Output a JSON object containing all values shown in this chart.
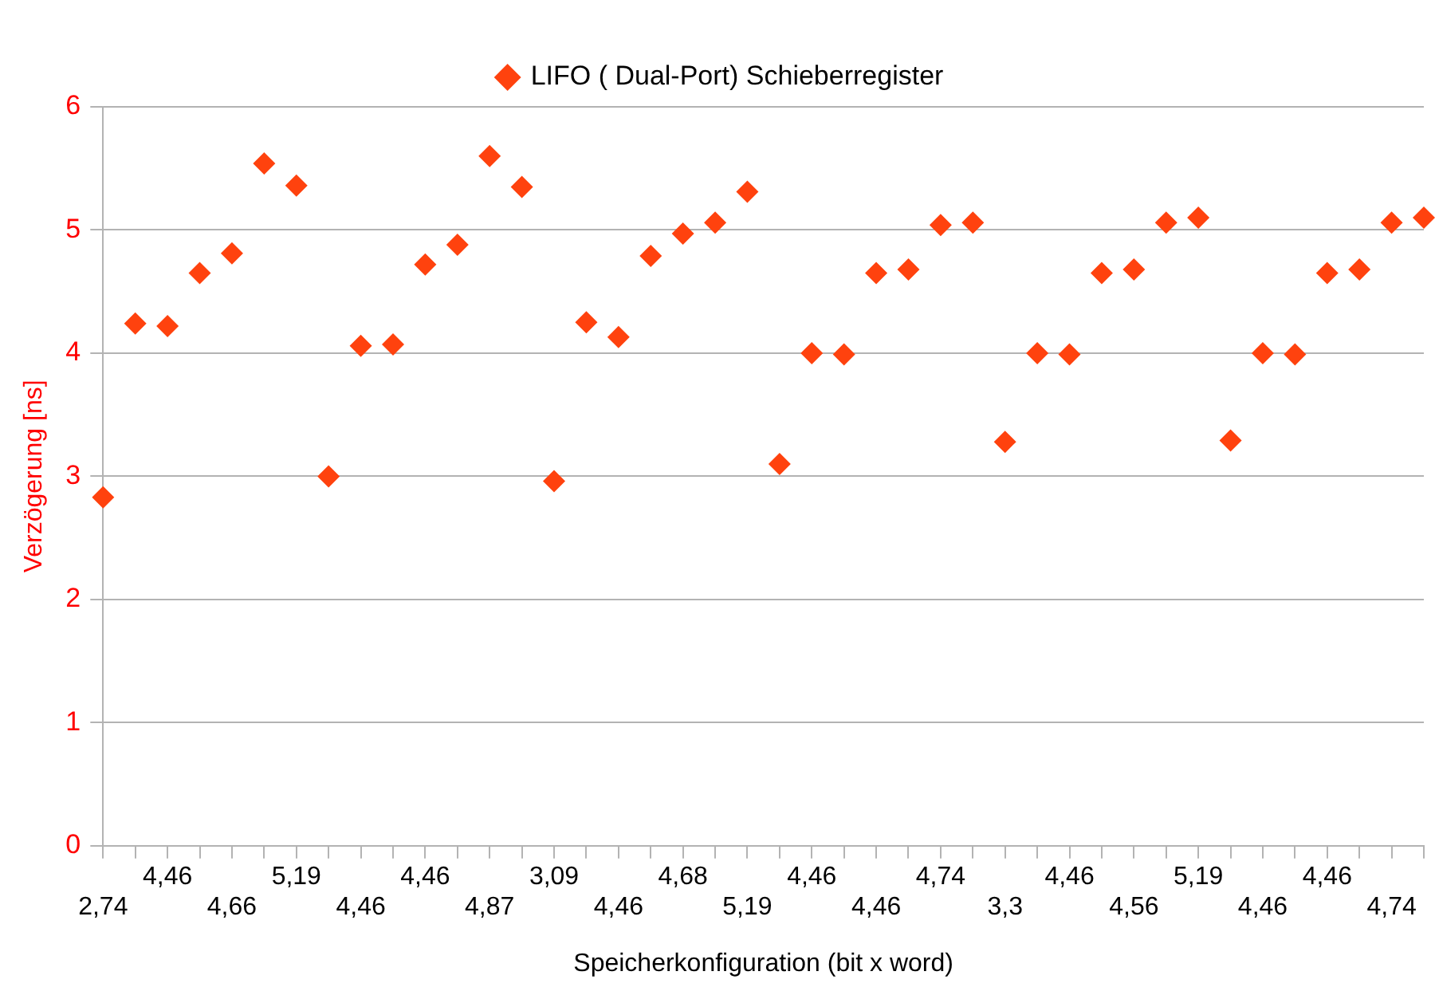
{
  "chart_data": {
    "type": "scatter",
    "categories": [
      "2,74",
      null,
      "4,46",
      null,
      "4,66",
      null,
      "5,19",
      null,
      "4,46",
      null,
      "4,46",
      null,
      "4,87",
      null,
      "3,09",
      null,
      "4,46",
      null,
      "4,68",
      null,
      "5,19",
      null,
      "4,46",
      null,
      "4,46",
      null,
      "4,74",
      null,
      "3,3",
      null,
      "4,46",
      null,
      "4,56",
      null,
      "5,19",
      null,
      "4,46",
      null,
      "4,46",
      null,
      "4,74",
      null
    ],
    "series": [
      {
        "name": "LIFO ( Dual-Port) Schieberregister",
        "color": "#ff420e",
        "values": [
          2.83,
          4.24,
          4.22,
          4.65,
          4.81,
          5.54,
          5.36,
          3.0,
          4.06,
          4.07,
          4.72,
          4.88,
          5.6,
          5.35,
          2.96,
          4.25,
          4.13,
          4.79,
          4.97,
          5.06,
          5.31,
          3.1,
          4.0,
          3.99,
          4.65,
          4.68,
          5.04,
          5.06,
          3.28,
          4.0,
          3.99,
          4.65,
          4.68,
          5.06,
          5.1,
          3.29,
          4.0,
          3.99,
          4.65,
          4.68,
          5.06,
          5.1
        ]
      }
    ],
    "xlabel": "Speicherkonfiguration (bit x word)",
    "ylabel": "Verzögerung [ns]",
    "ylim": [
      0,
      6
    ],
    "yticks": [
      0,
      1,
      2,
      3,
      4,
      5,
      6
    ],
    "grid": "y",
    "legend": "top",
    "marker": "diamond"
  }
}
